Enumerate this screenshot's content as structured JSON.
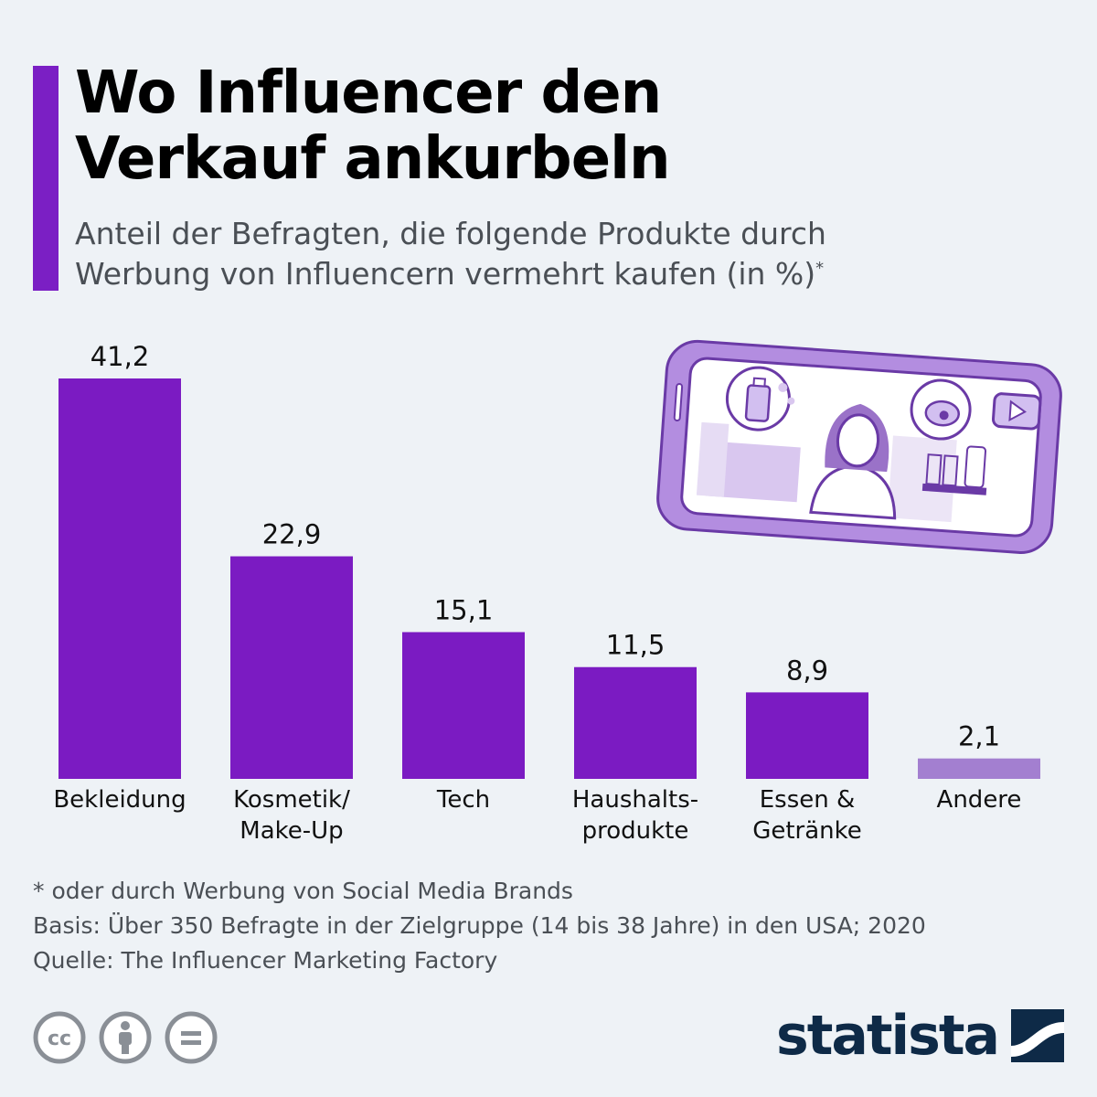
{
  "header": {
    "title_line1": "Wo Influencer den",
    "title_line2": "Verkauf ankurbeln",
    "subtitle_line1": "Anteil der Befragten, die folgende Produkte durch",
    "subtitle_line2": "Werbung von Influencern vermehrt kaufen (in %)",
    "subtitle_mark": "*"
  },
  "colors": {
    "accent": "#7b1fc4",
    "bar": "#7b1bc2",
    "bar_muted": "#a37fd0",
    "brand": "#0e2a47"
  },
  "chart_data": {
    "type": "bar",
    "categories": [
      "Bekleidung",
      "Kosmetik/ Make-Up",
      "Tech",
      "Haushalts- produkte",
      "Essen & Getränke",
      "Andere"
    ],
    "category_lines": [
      [
        "Bekleidung"
      ],
      [
        "Kosmetik/",
        "Make-Up"
      ],
      [
        "Tech"
      ],
      [
        "Haushalts-",
        "produkte"
      ],
      [
        "Essen &",
        "Getränke"
      ],
      [
        "Andere"
      ]
    ],
    "values": [
      41.2,
      22.9,
      15.1,
      11.5,
      8.9,
      2.1
    ],
    "value_labels": [
      "41,2",
      "22,9",
      "15,1",
      "11,5",
      "8,9",
      "2,1"
    ],
    "muted_categories": [
      "Andere"
    ],
    "ylim": [
      0,
      41.2
    ],
    "grid": false,
    "legend": "none"
  },
  "footer": {
    "note": "* oder durch Werbung von Social Media Brands",
    "basis": "Basis: Über 350 Befragte in der Zielgruppe (14 bis 38 Jahre) in den USA; 2020",
    "source": "Quelle: The Influencer Marketing Factory",
    "license_icons": [
      "cc-icon",
      "by-icon",
      "nd-icon"
    ],
    "brand": "statista"
  }
}
